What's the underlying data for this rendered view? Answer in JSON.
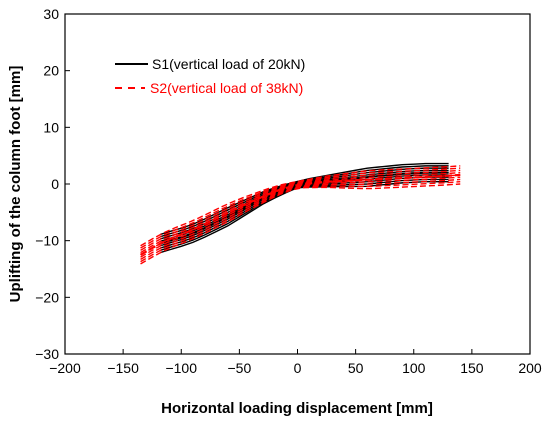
{
  "chart_data": {
    "type": "line",
    "xlabel": "Horizontal loading displacement [mm]",
    "ylabel": "Uplifting of the column foot [mm]",
    "xlim": [
      -200,
      200
    ],
    "ylim": [
      -30,
      30
    ],
    "xticks": [
      -200,
      -150,
      -100,
      -50,
      0,
      50,
      100,
      150,
      200
    ],
    "yticks": [
      -30,
      -20,
      -10,
      0,
      10,
      20,
      30
    ],
    "grid": false,
    "legend_position": "top-left",
    "series": [
      {
        "name": "S1(vertical load of 20kN)",
        "color": "#000000",
        "style": "solid",
        "x": [
          -118,
          -110,
          -100,
          -90,
          -80,
          -70,
          -60,
          -50,
          -40,
          -30,
          -20,
          -10,
          0,
          10,
          20,
          30,
          40,
          50,
          60,
          70,
          80,
          90,
          100,
          110,
          120,
          130
        ],
        "y": [
          -10.5,
          -10.0,
          -9.4,
          -8.7,
          -7.8,
          -6.8,
          -5.8,
          -4.7,
          -3.6,
          -2.5,
          -1.6,
          -0.8,
          -0.1,
          0.2,
          0.4,
          0.6,
          0.8,
          1.0,
          1.2,
          1.4,
          1.6,
          1.8,
          1.9,
          2.0,
          2.0,
          2.0
        ]
      },
      {
        "name": "S2(vertical load of 38kN)",
        "color": "#ff0000",
        "style": "dashed",
        "x": [
          -135,
          -125,
          -115,
          -105,
          -95,
          -85,
          -75,
          -65,
          -55,
          -45,
          -35,
          -25,
          -15,
          -5,
          5,
          15,
          25,
          35,
          45,
          55,
          65,
          75,
          85,
          95,
          105,
          115,
          125,
          140
        ],
        "y": [
          -12.5,
          -11.3,
          -10.2,
          -9.3,
          -8.5,
          -7.6,
          -6.6,
          -5.6,
          -4.6,
          -3.6,
          -2.7,
          -1.8,
          -1.0,
          -0.4,
          0.0,
          0.2,
          0.4,
          0.5,
          0.6,
          0.7,
          0.8,
          0.9,
          1.0,
          1.1,
          1.2,
          1.3,
          1.4,
          1.6
        ]
      }
    ]
  }
}
